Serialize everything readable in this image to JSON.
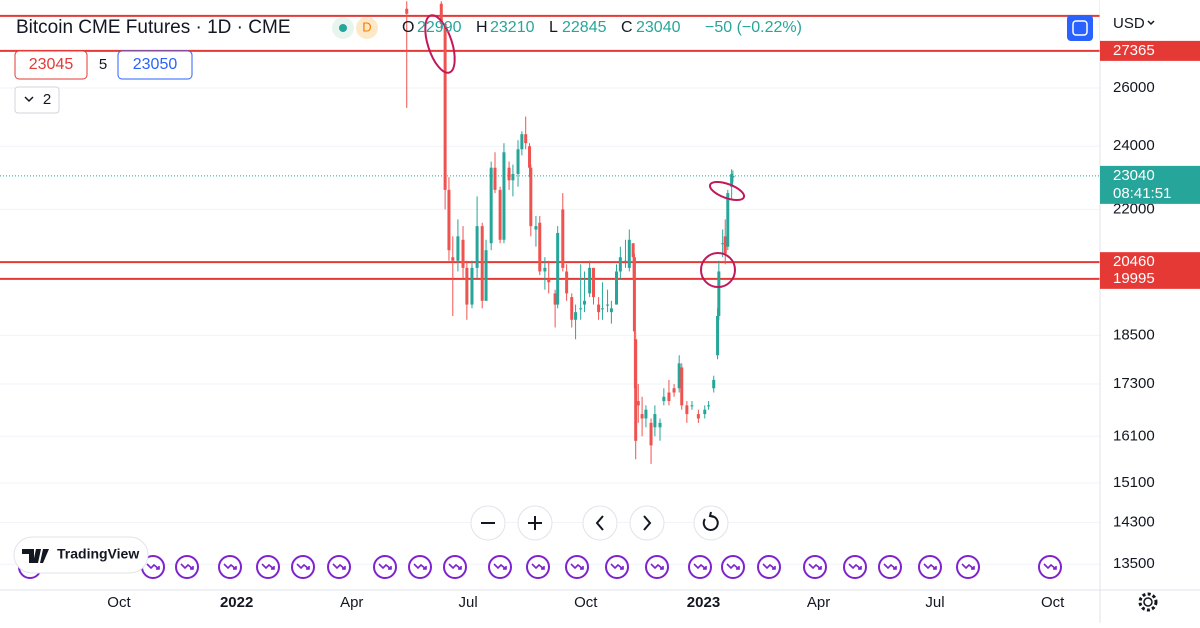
{
  "header": {
    "title": "Bitcoin CME Futures · 1D · CME",
    "badge": "D",
    "ohlc": [
      {
        "label": "O",
        "value": 22990
      },
      {
        "label": "H",
        "value": 23210
      },
      {
        "label": "L",
        "value": 22845
      },
      {
        "label": "C",
        "value": 23040
      }
    ],
    "change": "−50 (−0.22%)"
  },
  "order": {
    "sell": 23045,
    "quantity": 5,
    "buy": 23050
  },
  "indicators": "2",
  "currency": "USD",
  "logo": "TradingView",
  "chart_data": {
    "type": "candlestick",
    "log": true,
    "grid": true,
    "up_color": "#26a69a",
    "down_color": "#ef5350",
    "x": [
      "2022-05-14",
      "2022-06-10",
      "2022-06-13",
      "2022-06-16",
      "2022-06-19",
      "2022-06-23",
      "2022-06-27",
      "2022-06-30",
      "2022-07-04",
      "2022-07-08",
      "2022-07-12",
      "2022-07-15",
      "2022-07-19",
      "2022-07-22",
      "2022-07-26",
      "2022-07-29",
      "2022-08-02",
      "2022-08-05",
      "2022-08-09",
      "2022-08-12",
      "2022-08-15",
      "2022-08-18",
      "2022-08-19",
      "2022-08-23",
      "2022-08-26",
      "2022-08-30",
      "2022-09-02",
      "2022-09-07",
      "2022-09-09",
      "2022-09-13",
      "2022-09-16",
      "2022-09-20",
      "2022-09-23",
      "2022-09-27",
      "2022-09-30",
      "2022-10-04",
      "2022-10-07",
      "2022-10-11",
      "2022-10-14",
      "2022-10-18",
      "2022-10-21",
      "2022-10-25",
      "2022-10-28",
      "2022-11-01",
      "2022-11-04",
      "2022-11-07",
      "2022-11-08",
      "2022-11-09",
      "2022-11-11",
      "2022-11-14",
      "2022-11-17",
      "2022-11-21",
      "2022-11-24",
      "2022-11-28",
      "2022-12-01",
      "2022-12-05",
      "2022-12-09",
      "2022-12-13",
      "2022-12-15",
      "2022-12-19",
      "2022-12-23",
      "2022-12-28",
      "2023-01-02",
      "2023-01-05",
      "2023-01-09",
      "2023-01-12",
      "2023-01-13",
      "2023-01-16",
      "2023-01-18",
      "2023-01-20",
      "2023-01-23",
      "2023-01-24"
    ],
    "open": [
      29000,
      29200,
      28400,
      22600,
      20600,
      20500,
      21100,
      20300,
      19300,
      20300,
      21500,
      19400,
      21000,
      23300,
      22600,
      21100,
      23300,
      22900,
      23100,
      23900,
      24400,
      24000,
      23300,
      21400,
      21600,
      20200,
      20000,
      19600,
      19300,
      22000,
      20200,
      19500,
      18900,
      19200,
      19300,
      19600,
      20300,
      19300,
      19200,
      19300,
      19100,
      19300,
      20200,
      20500,
      20300,
      21000,
      20600,
      18400,
      16900,
      16600,
      16500,
      16400,
      16300,
      16300,
      16900,
      17100,
      17200,
      17200,
      17700,
      16800,
      16800,
      16600,
      16600,
      16800,
      17200,
      18000,
      19000,
      21000,
      21200,
      20900,
      22700,
      22990
    ],
    "high": [
      29300,
      29300,
      28400,
      23000,
      21200,
      21700,
      21500,
      20500,
      20500,
      22400,
      21600,
      21100,
      23500,
      23800,
      22700,
      24100,
      23500,
      23400,
      24200,
      24500,
      25000,
      24100,
      23400,
      21800,
      21800,
      20600,
      20500,
      19700,
      21500,
      22500,
      20400,
      19600,
      19300,
      20400,
      20200,
      20500,
      20300,
      19500,
      19900,
      19700,
      19400,
      20400,
      20900,
      21100,
      21400,
      21000,
      20700,
      18600,
      17300,
      17000,
      16800,
      16500,
      16800,
      16500,
      17200,
      17400,
      17300,
      18000,
      17800,
      16900,
      16900,
      16700,
      16800,
      16900,
      17500,
      19200,
      20500,
      21400,
      21700,
      22600,
      23250,
      23210
    ],
    "low": [
      25300,
      28200,
      22000,
      20500,
      19000,
      20200,
      20000,
      18900,
      19200,
      20000,
      19200,
      19400,
      20800,
      22500,
      21000,
      21000,
      22600,
      22400,
      22700,
      23700,
      23900,
      23000,
      21200,
      20900,
      20100,
      19700,
      19600,
      18700,
      19200,
      20200,
      19400,
      18700,
      18400,
      18900,
      19100,
      19500,
      19300,
      18900,
      18900,
      19100,
      18800,
      19300,
      20000,
      20300,
      20200,
      20000,
      17200,
      15600,
      16400,
      16100,
      16300,
      15500,
      16100,
      16000,
      16800,
      16800,
      17000,
      17100,
      16700,
      16400,
      16700,
      16400,
      16500,
      16700,
      17100,
      17900,
      18900,
      20600,
      20400,
      20800,
      22300,
      22845
    ],
    "close": [
      28800,
      28400,
      22600,
      20800,
      20500,
      21200,
      20300,
      19300,
      20300,
      21500,
      19400,
      20800,
      23300,
      22600,
      21100,
      23800,
      22900,
      23100,
      23900,
      24400,
      24100,
      23300,
      21500,
      21500,
      20200,
      20300,
      19900,
      19300,
      21300,
      20300,
      19600,
      18900,
      19100,
      19200,
      19400,
      20300,
      19500,
      19100,
      19200,
      19300,
      19200,
      20200,
      20600,
      20500,
      21100,
      20600,
      18600,
      16000,
      16800,
      16500,
      16700,
      15900,
      16600,
      16400,
      17000,
      16900,
      17100,
      17800,
      16800,
      16600,
      16800,
      16500,
      16700,
      16800,
      17400,
      19000,
      20200,
      21000,
      20700,
      22500,
      23100,
      23040
    ],
    "xlim": [
      "2021-06-30",
      "2023-11-07"
    ],
    "xticks": [
      {
        "value": "2021-10-01",
        "label": "Oct"
      },
      {
        "value": "2022-01-01",
        "label": "2022"
      },
      {
        "value": "2022-04-01",
        "label": "Apr"
      },
      {
        "value": "2022-07-01",
        "label": "Jul"
      },
      {
        "value": "2022-10-01",
        "label": "Oct"
      },
      {
        "value": "2023-01-01",
        "label": "2023"
      },
      {
        "value": "2023-04-01",
        "label": "Apr"
      },
      {
        "value": "2023-07-01",
        "label": "Jul"
      },
      {
        "value": "2023-10-01",
        "label": "Oct"
      }
    ],
    "ylim": [
      13030,
      29350
    ],
    "yticks": [
      26000,
      24000,
      22000,
      18500,
      17300,
      16100,
      15100,
      14300,
      13500
    ],
    "levels": [
      {
        "value": 28715
      },
      {
        "value": 27365,
        "label": "27365"
      },
      {
        "value": 20460,
        "label": "20460"
      },
      {
        "value": 19995,
        "label": "19995"
      }
    ],
    "level_color": "#e53935",
    "last_price": 23040,
    "countdown": "08:41:51"
  }
}
